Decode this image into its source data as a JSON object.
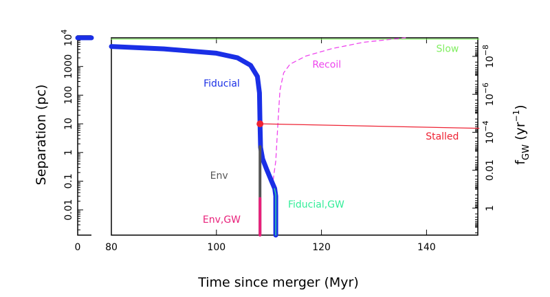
{
  "chart_data": {
    "type": "line",
    "title": "",
    "xlabel": "Time since merger (Myr)",
    "ylabel": "Separation (pc)",
    "y2label": "f_GW (yr^-1)",
    "y2label_main": "f",
    "y2label_sub": "GW",
    "y2label_unit_open": "(yr",
    "y2label_unit_exp": "−1",
    "y2label_unit_close": ")",
    "xlim_break_panel": [
      0,
      7
    ],
    "xlim": [
      80,
      150
    ],
    "ylim": [
      0.0013,
      12000
    ],
    "yscale": "log",
    "xticks": [
      0,
      80,
      100,
      120,
      140
    ],
    "xtick_labels": [
      "0",
      "80",
      "100",
      "120",
      "140"
    ],
    "yticks": [
      {
        "value": 0.01,
        "label": "0.01"
      },
      {
        "value": 0.1,
        "label": "0.1"
      },
      {
        "value": 1,
        "label": "1"
      },
      {
        "value": 10,
        "label": "10"
      },
      {
        "value": 100,
        "label": "100"
      },
      {
        "value": 1000,
        "label": "1000"
      },
      {
        "value": 10000,
        "label": "10",
        "exp": "4"
      }
    ],
    "y2ticks": [
      {
        "value": 1,
        "label": "1"
      },
      {
        "value": 0.01,
        "label": "0.01"
      },
      {
        "value": 0.0001,
        "label": "10",
        "exp": "−4"
      },
      {
        "value": 1e-06,
        "label": "10",
        "exp": "−6"
      },
      {
        "value": 1e-08,
        "label": "10",
        "exp": "−8"
      }
    ],
    "series": [
      {
        "name": "Slow",
        "color": "#80ee60",
        "style": "solid",
        "width": "thin",
        "points": [
          [
            80,
            9000
          ],
          [
            150,
            9000
          ]
        ]
      },
      {
        "name": "Recoil",
        "color": "#ee44ee",
        "style": "dashed",
        "width": "thin",
        "points": [
          [
            110.6,
            0.06
          ],
          [
            111.3,
            0.5
          ],
          [
            111.7,
            10
          ],
          [
            112.1,
            150
          ],
          [
            112.8,
            600
          ],
          [
            114,
            1200
          ],
          [
            117,
            2300
          ],
          [
            122,
            4200
          ],
          [
            128,
            7000
          ],
          [
            136,
            12000
          ]
        ]
      },
      {
        "name": "Stalled",
        "color": "#ee2233",
        "style": "solid",
        "width": "thin",
        "points": [
          [
            108.3,
            10
          ],
          [
            150,
            7
          ]
        ]
      },
      {
        "name": "Fiducial",
        "color": "#1a2fe6",
        "style": "solid",
        "width": "thick",
        "points": [
          [
            80,
            5000
          ],
          [
            90,
            4100
          ],
          [
            100,
            2900
          ],
          [
            104,
            2000
          ],
          [
            106.5,
            1100
          ],
          [
            107.8,
            450
          ],
          [
            108.2,
            120
          ],
          [
            108.3,
            10
          ],
          [
            108.4,
            1.5
          ],
          [
            108.8,
            0.6
          ],
          [
            109.6,
            0.25
          ],
          [
            110.5,
            0.1
          ],
          [
            111.1,
            0.055
          ],
          [
            111.3,
            0.03
          ],
          [
            111.3,
            0.0013
          ]
        ],
        "break_panel_points": [
          [
            0,
            10000
          ],
          [
            7,
            10000
          ]
        ]
      },
      {
        "name": "Env",
        "color": "#555555",
        "style": "solid",
        "width": "medium",
        "points": [
          [
            108.3,
            1.6
          ],
          [
            108.3,
            0.0013
          ]
        ]
      },
      {
        "name": "Env,GW",
        "color": "#e8207a",
        "style": "solid",
        "width": "medium",
        "points": [
          [
            108.3,
            0.025
          ],
          [
            108.3,
            0.0013
          ]
        ]
      },
      {
        "name": "Fiducial,GW",
        "color": "#33ee99",
        "style": "solid",
        "width": "thin",
        "points": [
          [
            111.05,
            0.055
          ],
          [
            111.3,
            0.035
          ],
          [
            111.3,
            0.0013
          ]
        ]
      }
    ],
    "markers": [
      {
        "name": "stall-point",
        "x": 108.3,
        "y": 10,
        "color": "#ee2233"
      }
    ],
    "annotations": [
      {
        "text": "Fiducial",
        "color": "#1a2fe6",
        "x": 101,
        "y": 200
      },
      {
        "text": "Recoil",
        "color": "#ee44ee",
        "x": 121,
        "y": 900
      },
      {
        "text": "Slow",
        "color": "#80ee60",
        "x": 144,
        "y": 3200
      },
      {
        "text": "Stalled",
        "color": "#ee2233",
        "x": 143,
        "y": 2.8
      },
      {
        "text": "Env",
        "color": "#555555",
        "x": 100.5,
        "y": 0.12
      },
      {
        "text": "Env,GW",
        "color": "#e8207a",
        "x": 101,
        "y": 0.0035
      },
      {
        "text": "Fiducial,GW",
        "color": "#33ee99",
        "x": 119,
        "y": 0.012
      }
    ]
  }
}
